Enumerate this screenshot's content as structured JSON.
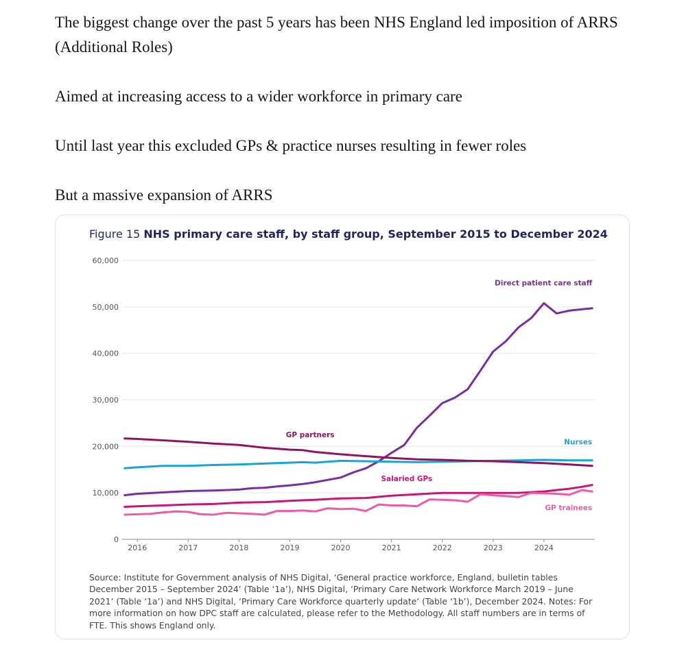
{
  "article": {
    "paragraphs": [
      "The biggest change over the past 5 years has been NHS England led imposition of ARRS (Additional Roles)",
      "Aimed at increasing access to a wider workforce in primary care",
      "Until last year this excluded GPs & practice nurses resulting in fewer roles",
      "But a massive expansion of ARRS"
    ]
  },
  "figure": {
    "number": "Figure 15",
    "title": "NHS primary care staff, by staff group, September 2015 to December 2024",
    "source": "Source: Institute for Government analysis of NHS Digital, ‘General practice workforce, England, bulletin tables December 2015 – September 2024’ (Table ‘1a’), NHS Digital, ‘Primary Care Network Workforce March 2019 – June 2021’ (Table ‘1a’) and NHS Digital, ‘Primary Care Workforce quarterly update’ (Table ‘1b’), December 2024. Notes: For more information on how DPC staff are calculated, please refer to the Methodology. All staff numbers are in terms of FTE. This shows England only."
  },
  "chart_data": {
    "type": "line",
    "title": "NHS primary care staff, by staff group, September 2015 to December 2024",
    "xlabel": "",
    "ylabel": "",
    "ylim": [
      0,
      60000
    ],
    "xlim": [
      2015.7,
      2025.0
    ],
    "yticks": [
      0,
      10000,
      20000,
      30000,
      40000,
      50000,
      60000
    ],
    "ytick_labels": [
      "0",
      "10,000",
      "20,000",
      "30,000",
      "40,000",
      "50,000",
      "60,000"
    ],
    "xticks": [
      2016,
      2017,
      2018,
      2019,
      2020,
      2021,
      2022,
      2023,
      2024
    ],
    "xtick_labels": [
      "2016",
      "2017",
      "2018",
      "2019",
      "2020",
      "2021",
      "2022",
      "2023",
      "2024"
    ],
    "grid": true,
    "series": [
      {
        "name": "Direct patient care staff",
        "color": "#7b2d9e",
        "label_at": [
          2024.95,
          54600
        ],
        "x": [
          2015.75,
          2016.0,
          2016.5,
          2017.0,
          2017.5,
          2018.0,
          2018.25,
          2018.5,
          2018.75,
          2019.0,
          2019.25,
          2019.5,
          2019.75,
          2020.0,
          2020.25,
          2020.5,
          2020.75,
          2021.0,
          2021.25,
          2021.5,
          2021.75,
          2022.0,
          2022.25,
          2022.5,
          2022.75,
          2023.0,
          2023.25,
          2023.5,
          2023.75,
          2024.0,
          2024.25,
          2024.5,
          2024.75,
          2024.95
        ],
        "values": [
          9500,
          9800,
          10100,
          10400,
          10500,
          10700,
          11000,
          11100,
          11400,
          11600,
          11900,
          12300,
          12800,
          13300,
          14400,
          15300,
          16800,
          18600,
          20300,
          24000,
          26600,
          29300,
          30500,
          32300,
          36300,
          40400,
          42600,
          45600,
          47600,
          50800,
          48600,
          49200,
          49500,
          49700
        ]
      },
      {
        "name": "Nurses",
        "color": "#19a3d6",
        "label_at": [
          2024.95,
          20400
        ],
        "x": [
          2015.75,
          2016.0,
          2016.5,
          2017.0,
          2017.5,
          2018.0,
          2018.5,
          2019.0,
          2019.25,
          2019.5,
          2020.0,
          2020.5,
          2021.0,
          2021.5,
          2022.0,
          2022.5,
          2023.0,
          2023.5,
          2024.0,
          2024.5,
          2024.95
        ],
        "values": [
          15300,
          15500,
          15800,
          15800,
          16000,
          16100,
          16300,
          16500,
          16600,
          16500,
          16900,
          16800,
          16700,
          16600,
          16700,
          16800,
          16900,
          17000,
          17100,
          17000,
          17000
        ]
      },
      {
        "name": "GP partners",
        "color": "#8e1463",
        "label_at": [
          2019.4,
          22000
        ],
        "x": [
          2015.75,
          2016.0,
          2016.5,
          2017.0,
          2017.5,
          2018.0,
          2018.5,
          2019.0,
          2019.25,
          2019.5,
          2020.0,
          2020.5,
          2021.0,
          2021.5,
          2022.0,
          2022.5,
          2023.0,
          2023.5,
          2024.0,
          2024.5,
          2024.95
        ],
        "values": [
          21700,
          21600,
          21300,
          21000,
          20600,
          20300,
          19700,
          19300,
          19200,
          18800,
          18300,
          17900,
          17500,
          17200,
          17100,
          16900,
          16800,
          16600,
          16400,
          16100,
          15800
        ]
      },
      {
        "name": "Salaried GPs",
        "color": "#c8157a",
        "label_at": [
          2021.3,
          12500
        ],
        "x": [
          2015.75,
          2016.0,
          2016.5,
          2017.0,
          2017.5,
          2018.0,
          2018.5,
          2019.0,
          2019.5,
          2020.0,
          2020.5,
          2021.0,
          2021.5,
          2022.0,
          2022.5,
          2023.0,
          2023.5,
          2024.0,
          2024.25,
          2024.5,
          2024.75,
          2024.95
        ],
        "values": [
          7000,
          7100,
          7300,
          7500,
          7600,
          7900,
          8000,
          8300,
          8500,
          8800,
          8900,
          9400,
          9700,
          10000,
          10000,
          10000,
          10000,
          10300,
          10600,
          10900,
          11300,
          11700
        ]
      },
      {
        "name": "GP trainees",
        "color": "#ee5aa9",
        "label_at": [
          2024.95,
          6300
        ],
        "x": [
          2015.75,
          2016.0,
          2016.25,
          2016.5,
          2016.75,
          2017.0,
          2017.25,
          2017.5,
          2017.75,
          2018.0,
          2018.25,
          2018.5,
          2018.75,
          2019.0,
          2019.25,
          2019.5,
          2019.75,
          2020.0,
          2020.25,
          2020.5,
          2020.75,
          2021.0,
          2021.25,
          2021.5,
          2021.75,
          2022.0,
          2022.25,
          2022.5,
          2022.75,
          2023.0,
          2023.25,
          2023.5,
          2023.75,
          2024.0,
          2024.25,
          2024.5,
          2024.75,
          2024.95
        ],
        "values": [
          5300,
          5400,
          5500,
          5800,
          6000,
          5900,
          5400,
          5300,
          5700,
          5600,
          5500,
          5300,
          6100,
          6100,
          6200,
          6000,
          6700,
          6500,
          6600,
          6100,
          7500,
          7300,
          7300,
          7100,
          8600,
          8500,
          8400,
          8100,
          9700,
          9500,
          9300,
          9100,
          10000,
          9900,
          9800,
          9600,
          10600,
          10300
        ]
      }
    ]
  }
}
